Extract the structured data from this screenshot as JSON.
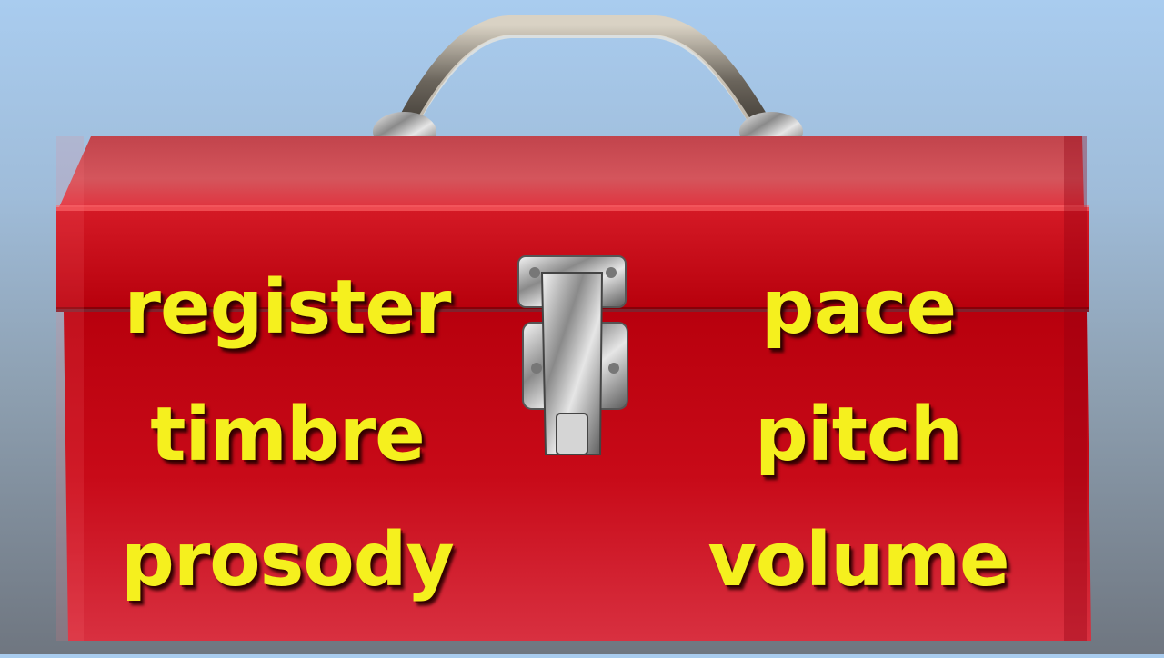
{
  "toolbox": {
    "color": "#c8101a",
    "text_color": "#f5f01e",
    "words_left": [
      "register",
      "timbre",
      "prosody"
    ],
    "words_right": [
      "pace",
      "pitch",
      "volume"
    ]
  }
}
